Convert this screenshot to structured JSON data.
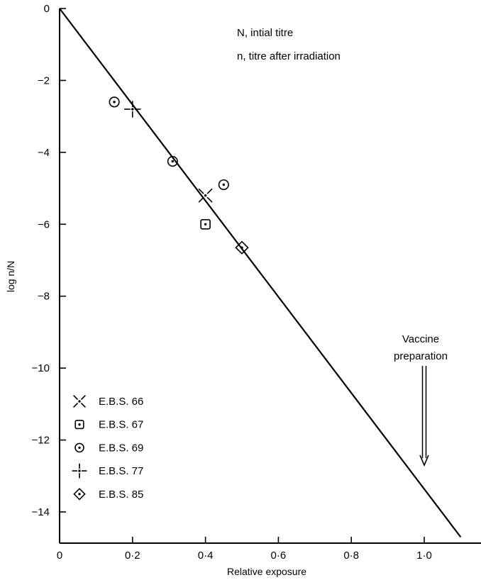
{
  "chart_data": {
    "type": "scatter",
    "title": "",
    "xlabel": "Relative exposure",
    "ylabel": "log n/N",
    "xlim": [
      0,
      1.2
    ],
    "ylim": [
      -15,
      0
    ],
    "x_ticks": [
      0,
      0.2,
      0.4,
      0.6,
      0.8,
      1.0
    ],
    "x_tick_labels": [
      "0",
      "0·2",
      "0·4",
      "0·6",
      "0·8",
      "1·0"
    ],
    "y_ticks": [
      0,
      -2,
      -4,
      -6,
      -8,
      -10,
      -12,
      -14
    ],
    "y_tick_labels": [
      "0",
      "−2",
      "−4",
      "−6",
      "−8",
      "−10",
      "−12",
      "−14"
    ],
    "grid": false,
    "legend_position": "bottom-left",
    "notes": [
      "N, intial titre",
      "n, titre after irradiation"
    ],
    "annotation": {
      "text_line1": "Vaccine",
      "text_line2": "preparation",
      "x": 1.0,
      "y_point": -12.7
    },
    "fit_line": {
      "x": [
        0,
        1.1
      ],
      "y": [
        0,
        -14.7
      ]
    },
    "series": [
      {
        "name": "E.B.S. 66",
        "marker": "x-cross-dot",
        "points": [
          {
            "x": 0.4,
            "y": -5.2
          }
        ]
      },
      {
        "name": "E.B.S. 67",
        "marker": "square-dot",
        "points": [
          {
            "x": 0.4,
            "y": -6.0
          }
        ]
      },
      {
        "name": "E.B.S. 69",
        "marker": "circle-dot",
        "points": [
          {
            "x": 0.15,
            "y": -2.6
          },
          {
            "x": 0.31,
            "y": -4.25
          },
          {
            "x": 0.45,
            "y": -4.9
          }
        ]
      },
      {
        "name": "E.B.S. 77",
        "marker": "plus-dot",
        "points": [
          {
            "x": 0.2,
            "y": -2.8
          }
        ]
      },
      {
        "name": "E.B.S. 85",
        "marker": "diamond-dot",
        "points": [
          {
            "x": 0.5,
            "y": -6.65
          }
        ]
      }
    ]
  }
}
